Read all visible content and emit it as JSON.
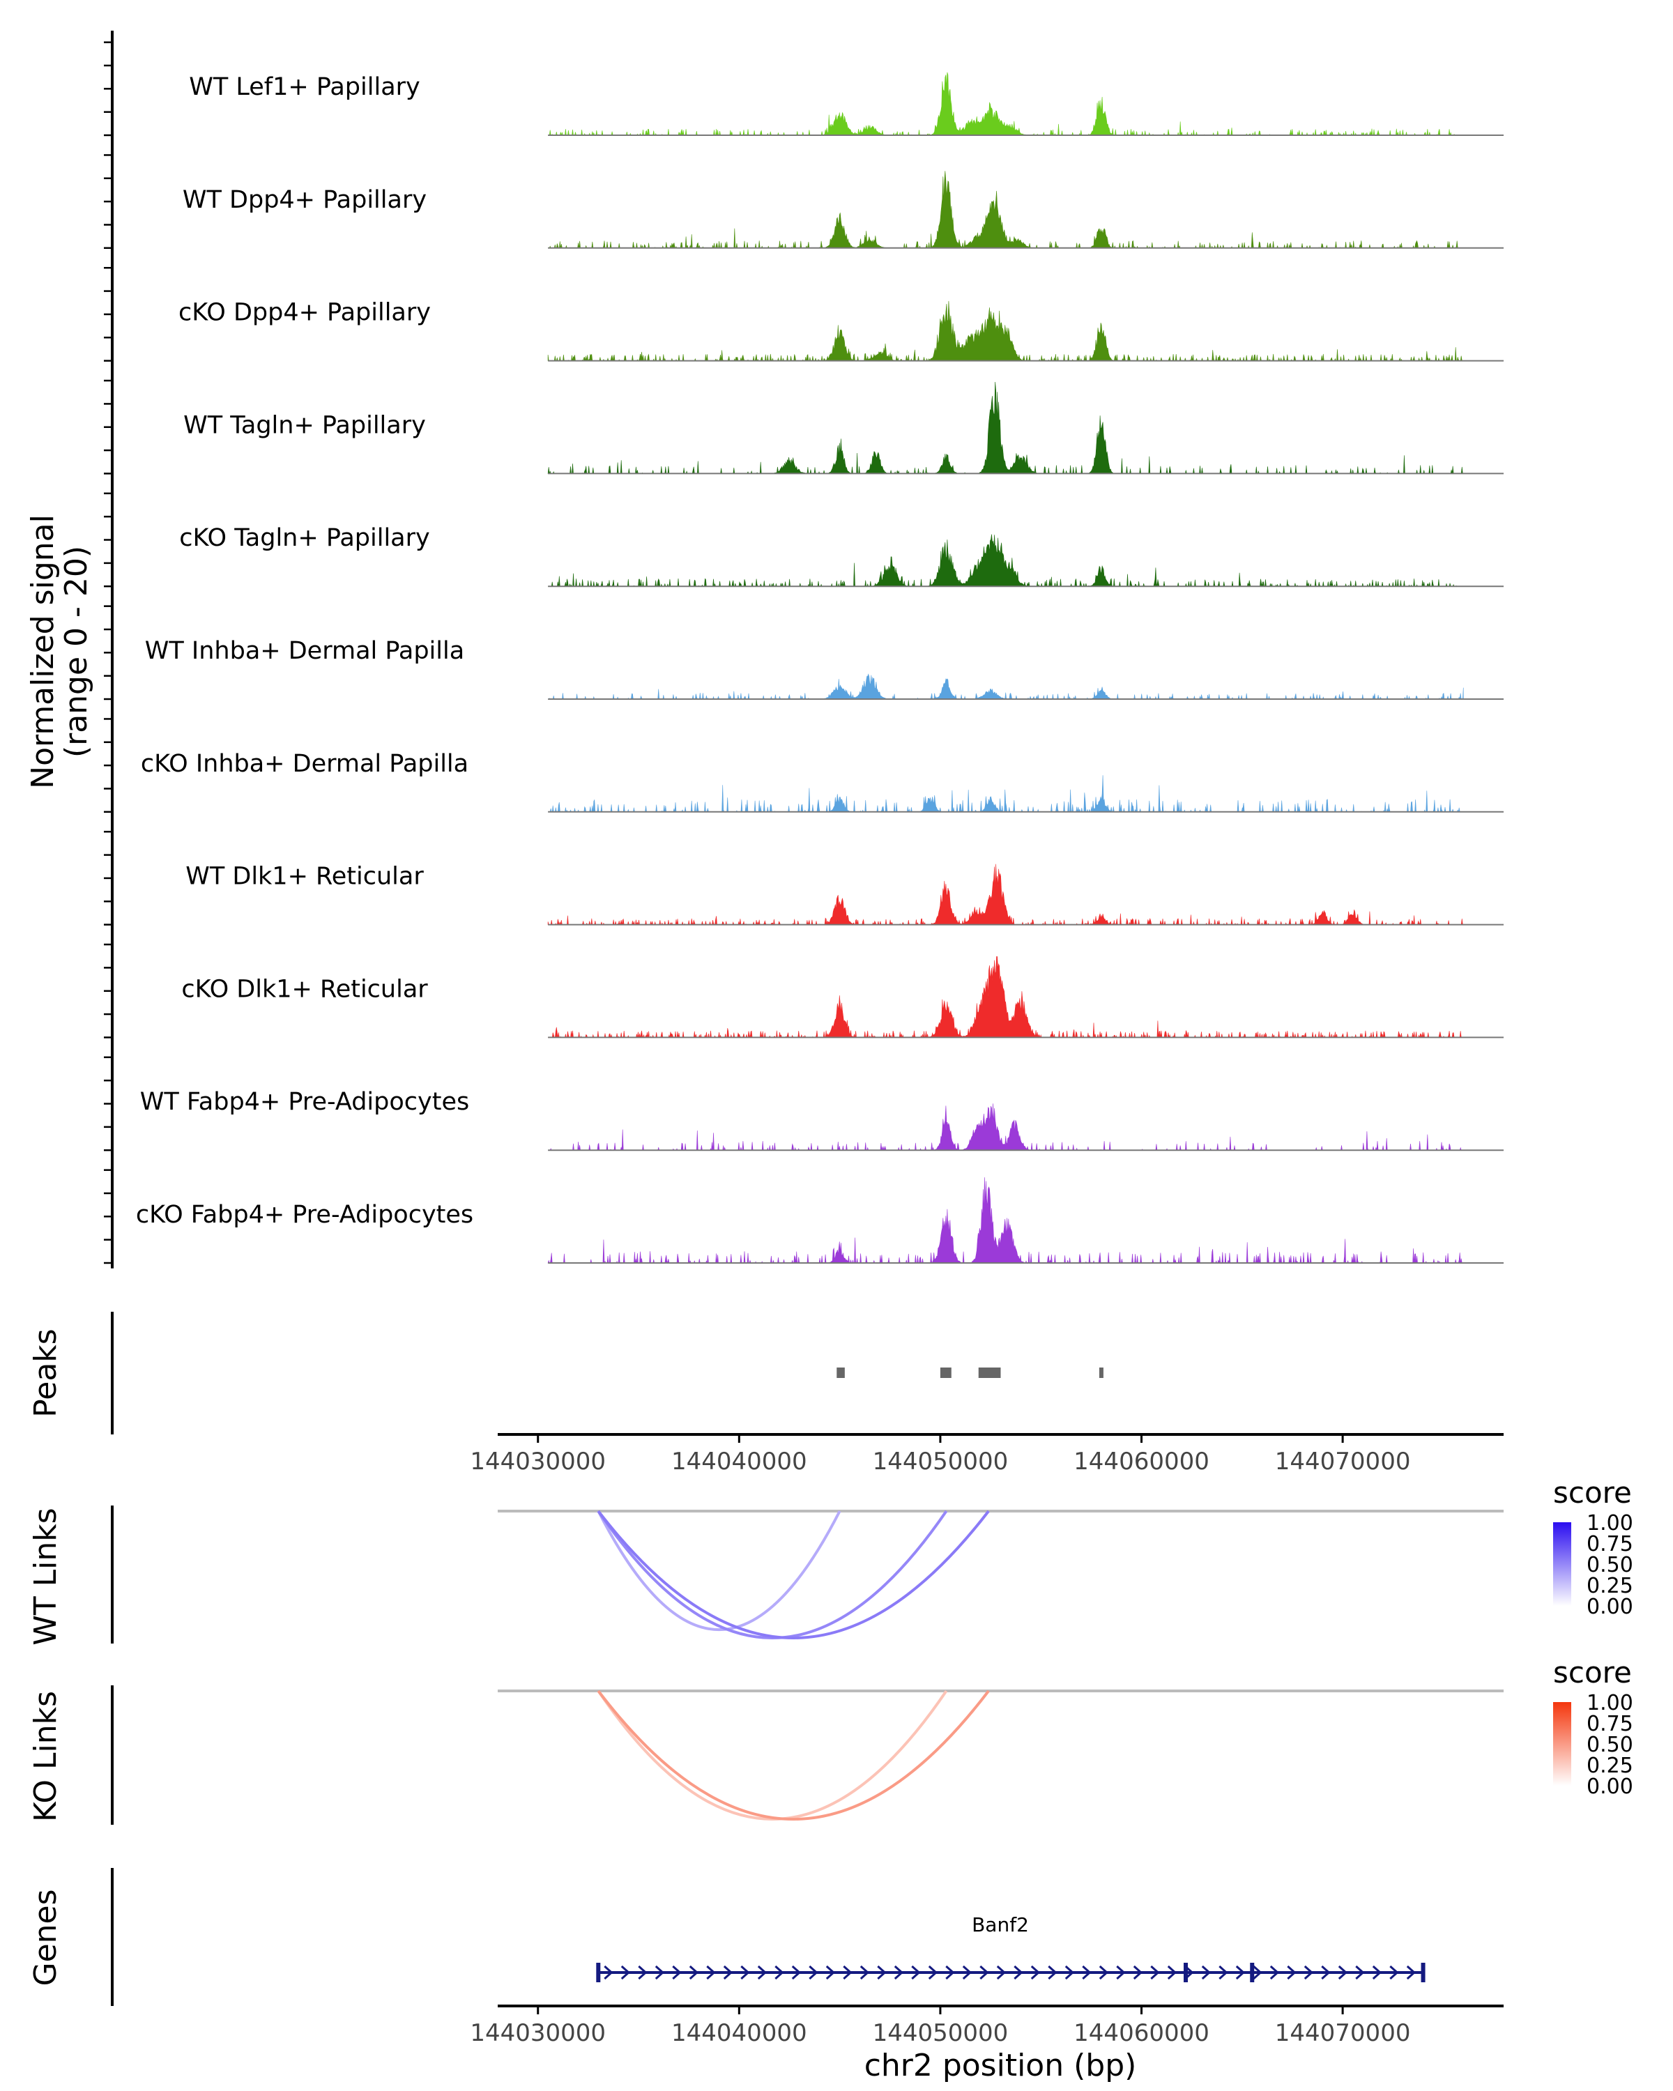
{
  "chart_data": {
    "type": "area",
    "title": "",
    "region": "chr2:144030000-144076000",
    "signal_axis_label": [
      "Normalized signal",
      "(range 0 - 20)"
    ],
    "signal_range": [
      0,
      20
    ],
    "xlim": [
      144028000,
      144078000
    ],
    "x_ticks": [
      "144030000",
      "144040000",
      "144050000",
      "144060000",
      "144070000"
    ],
    "x_tick_values": [
      144030000,
      144040000,
      144050000,
      144060000,
      144070000
    ],
    "xlabel": "chr2 position (bp)",
    "tracks": [
      {
        "name": "WT Lef1+ Papillary",
        "color": "#6acc1d",
        "density": 0.55,
        "noise": 1.2,
        "peaks": [
          [
            144045000,
            5,
            300
          ],
          [
            144046500,
            2,
            300
          ],
          [
            144050300,
            13,
            250
          ],
          [
            144051500,
            3,
            300
          ],
          [
            144052500,
            6,
            400
          ],
          [
            144053500,
            2,
            300
          ],
          [
            144058000,
            8,
            200
          ]
        ]
      },
      {
        "name": "WT Dpp4+ Papillary",
        "color": "#4e8f0f",
        "density": 0.45,
        "noise": 1.4,
        "peaks": [
          [
            144045000,
            7,
            250
          ],
          [
            144046500,
            2,
            300
          ],
          [
            144050300,
            16,
            250
          ],
          [
            144052000,
            3,
            400
          ],
          [
            144052700,
            11,
            300
          ],
          [
            144053800,
            2,
            300
          ],
          [
            144058000,
            5,
            200
          ]
        ]
      },
      {
        "name": "cKO Dpp4+ Papillary",
        "color": "#4e8f0f",
        "density": 0.75,
        "noise": 1.3,
        "peaks": [
          [
            144045000,
            7,
            250
          ],
          [
            144047000,
            2,
            300
          ],
          [
            144050300,
            12,
            300
          ],
          [
            144051500,
            5,
            400
          ],
          [
            144052500,
            10,
            400
          ],
          [
            144053300,
            6,
            300
          ],
          [
            144058000,
            9,
            200
          ]
        ]
      },
      {
        "name": "WT Tagln+ Papillary",
        "color": "#1e6b0e",
        "density": 0.35,
        "noise": 1.6,
        "peaks": [
          [
            144042500,
            3,
            300
          ],
          [
            144045000,
            6,
            200
          ],
          [
            144046800,
            5,
            200
          ],
          [
            144050300,
            4,
            200
          ],
          [
            144052700,
            19,
            250
          ],
          [
            144054000,
            4,
            300
          ],
          [
            144058000,
            13,
            200
          ]
        ]
      },
      {
        "name": "cKO Tagln+ Papillary",
        "color": "#1e6b0e",
        "density": 0.6,
        "noise": 1.5,
        "peaks": [
          [
            144047500,
            5,
            300
          ],
          [
            144050300,
            9,
            300
          ],
          [
            144052000,
            5,
            400
          ],
          [
            144052700,
            10,
            350
          ],
          [
            144053500,
            4,
            300
          ],
          [
            144058000,
            4,
            200
          ]
        ]
      },
      {
        "name": "WT Inhba+ Dermal Papilla",
        "color": "#5aa3df",
        "density": 0.4,
        "noise": 1.2,
        "peaks": [
          [
            144045000,
            3,
            300
          ],
          [
            144046500,
            5,
            300
          ],
          [
            144050300,
            4,
            200
          ],
          [
            144052500,
            2,
            300
          ],
          [
            144058000,
            2,
            200
          ]
        ]
      },
      {
        "name": "cKO Inhba+ Dermal Papilla",
        "color": "#5aa3df",
        "density": 0.5,
        "noise": 2.4,
        "peaks": [
          [
            144045000,
            3,
            200
          ],
          [
            144049500,
            3,
            200
          ],
          [
            144052500,
            3,
            200
          ],
          [
            144058000,
            3,
            200
          ]
        ]
      },
      {
        "name": "WT Dlk1+ Reticular",
        "color": "#ef2b2b",
        "density": 0.6,
        "noise": 1.2,
        "peaks": [
          [
            144045000,
            6,
            250
          ],
          [
            144050300,
            8,
            250
          ],
          [
            144051800,
            3,
            300
          ],
          [
            144052800,
            12,
            300
          ],
          [
            144058000,
            2,
            200
          ],
          [
            144069000,
            3,
            200
          ],
          [
            144070500,
            3,
            200
          ]
        ]
      },
      {
        "name": "cKO Dlk1+ Reticular",
        "color": "#ef2b2b",
        "density": 0.8,
        "noise": 1.3,
        "peaks": [
          [
            144045000,
            7,
            250
          ],
          [
            144050300,
            7,
            300
          ],
          [
            144052300,
            11,
            400
          ],
          [
            144052900,
            13,
            300
          ],
          [
            144054000,
            8,
            300
          ]
        ]
      },
      {
        "name": "WT Fabp4+ Pre-Adipocytes",
        "color": "#9b3ad8",
        "density": 0.3,
        "noise": 1.8,
        "peaks": [
          [
            144050300,
            7,
            200
          ],
          [
            144051800,
            5,
            250
          ],
          [
            144052500,
            10,
            300
          ],
          [
            144053700,
            6,
            250
          ]
        ]
      },
      {
        "name": "cKO Fabp4+ Pre-Adipocytes",
        "color": "#9b3ad8",
        "density": 0.45,
        "noise": 2.2,
        "peaks": [
          [
            144045000,
            3,
            200
          ],
          [
            144050300,
            11,
            250
          ],
          [
            144052300,
            18,
            250
          ],
          [
            144053300,
            9,
            300
          ]
        ]
      }
    ],
    "peaks_track": {
      "label": "Peaks",
      "regions": [
        [
          144044850,
          144045250
        ],
        [
          144050000,
          144050550
        ],
        [
          144051900,
          144053000
        ],
        [
          144057900,
          144058100
        ]
      ]
    },
    "links_tracks": [
      {
        "label": "WT Links",
        "anchor": 144033000,
        "targets": [
          144045000,
          144050300,
          144052400
        ],
        "scores": [
          0.35,
          0.5,
          0.55
        ],
        "color_high": "#2b0ef0",
        "legend_title": "score",
        "legend_ticks": [
          "1.00",
          "0.75",
          "0.50",
          "0.25",
          "0.00"
        ]
      },
      {
        "label": "KO Links",
        "anchor": 144033000,
        "targets": [
          144050300,
          144052400
        ],
        "scores": [
          0.3,
          0.5
        ],
        "color_high": "#f4360d",
        "legend_title": "score",
        "legend_ticks": [
          "1.00",
          "0.75",
          "0.50",
          "0.25",
          "0.00"
        ]
      }
    ],
    "genes_track": {
      "label": "Genes",
      "gene": "Banf2",
      "start": 144033000,
      "end": 144074000,
      "exons": [
        144033000,
        144062200,
        144065500,
        144074000
      ],
      "strand": "+",
      "color": "#141a80"
    }
  }
}
